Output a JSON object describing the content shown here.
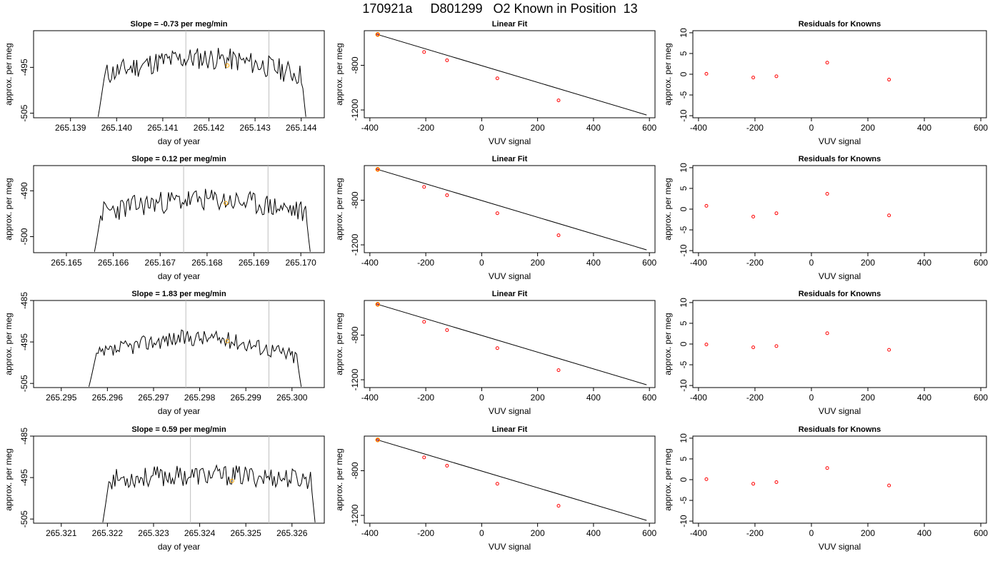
{
  "page": {
    "title": "170921a     D801299   O2 Known in Position  13"
  },
  "colors": {
    "trace": "#000000",
    "marker": "#ffa500",
    "residual": "#ff0000",
    "vline": "#bebebe",
    "axis": "#000000"
  },
  "chart_data": [
    {
      "type": "line",
      "panel": "timeseries-1",
      "title": "Slope =  -0.73  per meg/min",
      "xlabel": "day of year",
      "ylabel": "approx. per meg",
      "xlim": [
        265.1382,
        265.1445
      ],
      "ylim": [
        -506,
        -487
      ],
      "xticks": [
        "265.139",
        "265.140",
        "265.141",
        "265.142",
        "265.143",
        "265.144"
      ],
      "xtick_values": [
        265.139,
        265.14,
        265.141,
        265.142,
        265.143,
        265.144
      ],
      "yticks": [
        "-495",
        "-505"
      ],
      "ytick_values": [
        -495,
        -505
      ],
      "vlines": [
        265.1415,
        265.1433
      ],
      "x_start": 265.1396,
      "x_end": 265.1441,
      "base": -497,
      "rise": 4,
      "noise_amp": 2.5,
      "seed": 11,
      "marker": {
        "x": 265.1424,
        "y": -494.6
      }
    },
    {
      "type": "line",
      "panel": "timeseries-2",
      "title": "Slope =  0.12  per meg/min",
      "xlabel": "day of year",
      "ylabel": "approx. per meg",
      "xlim": [
        265.1643,
        265.1705
      ],
      "ylim": [
        -503.5,
        -484.5
      ],
      "xticks": [
        "265.165",
        "265.166",
        "265.167",
        "265.168",
        "265.169",
        "265.170"
      ],
      "xtick_values": [
        265.165,
        265.166,
        265.167,
        265.168,
        265.169,
        265.17
      ],
      "yticks": [
        "-490",
        "-500"
      ],
      "ytick_values": [
        -490,
        -500
      ],
      "vlines": [
        265.1675,
        265.1693
      ],
      "x_start": 265.1656,
      "x_end": 265.1702,
      "base": -495,
      "rise": 3,
      "noise_amp": 2.5,
      "seed": 23,
      "marker": {
        "x": 265.1684,
        "y": -492.7
      }
    },
    {
      "type": "line",
      "panel": "timeseries-3",
      "title": "Slope =  1.83  per meg/min",
      "xlabel": "day of year",
      "ylabel": "approx. per meg",
      "xlim": [
        265.2944,
        265.3007
      ],
      "ylim": [
        -506,
        -485
      ],
      "xticks": [
        "265.295",
        "265.296",
        "265.297",
        "265.298",
        "265.299",
        "265.300"
      ],
      "xtick_values": [
        265.295,
        265.296,
        265.297,
        265.298,
        265.299,
        265.3
      ],
      "yticks": [
        "-485",
        "-495",
        "-505"
      ],
      "ytick_values": [
        -485,
        -495,
        -505
      ],
      "vlines": [
        265.2977,
        265.2995
      ],
      "x_start": 265.2956,
      "x_end": 265.3002,
      "base": -499,
      "rise": 5,
      "noise_amp": 2.0,
      "seed": 37,
      "marker": {
        "x": 265.2986,
        "y": -494.8
      }
    },
    {
      "type": "line",
      "panel": "timeseries-4",
      "title": "Slope =  0.59  per meg/min",
      "xlabel": "day of year",
      "ylabel": "approx. per meg",
      "xlim": [
        265.3204,
        265.3267
      ],
      "ylim": [
        -506,
        -485
      ],
      "xticks": [
        "265.321",
        "265.322",
        "265.323",
        "265.324",
        "265.325",
        "265.326"
      ],
      "xtick_values": [
        265.321,
        265.322,
        265.323,
        265.324,
        265.325,
        265.326
      ],
      "yticks": [
        "-485",
        "-495",
        "-505"
      ],
      "ytick_values": [
        -485,
        -495,
        -505
      ],
      "vlines": [
        265.3238,
        265.3255
      ],
      "x_start": 265.3219,
      "x_end": 265.3265,
      "base": -495.5,
      "rise": 1,
      "noise_amp": 2.5,
      "seed": 53,
      "marker": {
        "x": 265.3247,
        "y": -495.8
      }
    },
    {
      "type": "scatter",
      "panel": "linear-fit",
      "title": "Linear Fit",
      "xlabel": "VUV signal",
      "ylabel": "approx. per meg",
      "xlim": [
        -420,
        620
      ],
      "ylim": [
        -1270,
        -490
      ],
      "xticks": [
        "-400",
        "-200",
        "0",
        "200",
        "400",
        "600"
      ],
      "xtick_values": [
        -400,
        -200,
        0,
        200,
        400,
        600
      ],
      "yticks": [
        "-800",
        "-1200"
      ],
      "ytick_values": [
        -800,
        -1200
      ],
      "points": {
        "x": [
          -372,
          -206,
          -124,
          56,
          275
        ],
        "y": [
          -524,
          -681,
          -755,
          -917,
          -1114
        ]
      },
      "fit_line": {
        "x": [
          -378,
          590
        ],
        "y": [
          -520,
          -1245
        ]
      },
      "marker": {
        "x": -372,
        "y": -524
      }
    },
    {
      "type": "scatter",
      "panel": "residuals",
      "title": "Residuals for Knowns",
      "xlabel": "VUV signal",
      "xlim": [
        -420,
        620
      ],
      "ylim": [
        -10.5,
        10.5
      ],
      "xticks": [
        "-400",
        "-200",
        "0",
        "200",
        "400",
        "600"
      ],
      "xtick_values": [
        -400,
        -200,
        0,
        200,
        400,
        600
      ],
      "yticks": [
        "-10",
        "-5",
        "0",
        "5",
        "10"
      ],
      "ytick_values": [
        -10,
        -5,
        0,
        5,
        10
      ],
      "ylabel_axis": "approx. per meg",
      "rows": [
        {
          "x": [
            -372,
            -206,
            -124,
            56,
            275
          ],
          "y": [
            0.1,
            -0.8,
            -0.5,
            2.8,
            -1.3
          ]
        },
        {
          "x": [
            -372,
            -206,
            -124,
            56,
            275
          ],
          "y": [
            0.8,
            -1.8,
            -1.0,
            3.7,
            -1.5
          ]
        },
        {
          "x": [
            -372,
            -206,
            -124,
            56,
            275
          ],
          "y": [
            -0.1,
            -0.8,
            -0.5,
            2.6,
            -1.4
          ]
        },
        {
          "x": [
            -372,
            -206,
            -124,
            56,
            275
          ],
          "y": [
            0.1,
            -1.0,
            -0.6,
            2.8,
            -1.4
          ]
        }
      ]
    }
  ]
}
